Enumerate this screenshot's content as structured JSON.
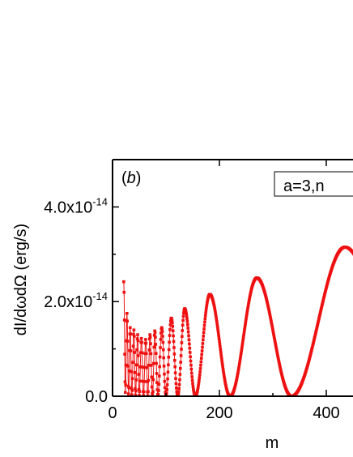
{
  "chart_data": {
    "type": "scatter",
    "panel_label": "b",
    "legend_text": "a=3,n",
    "xlabel": "m",
    "ylabel": "dI/dωdΩ (erg/s)",
    "xlim": [
      0,
      450
    ],
    "ylim": [
      0,
      5e-14
    ],
    "x_ticks": [
      0,
      200,
      400
    ],
    "y_ticks": [
      {
        "value": 0,
        "label": "0.0"
      },
      {
        "value": 2e-14,
        "label": "2.0x10",
        "exp": "-14"
      },
      {
        "value": 4e-14,
        "label": "4.0x10",
        "exp": "-14"
      }
    ],
    "grid": false,
    "series": [
      {
        "color": "#ee1111",
        "marker": "square",
        "connected": true,
        "envelope_peaks": [
          [
            21,
            2.42e-14
          ],
          [
            27,
            1.75e-14
          ],
          [
            33,
            1.45e-14
          ],
          [
            40,
            1.4e-14
          ],
          [
            47,
            1.3e-14
          ],
          [
            54,
            1.22e-14
          ],
          [
            62,
            1.2e-14
          ],
          [
            70,
            1.3e-14
          ],
          [
            79,
            1.38e-14
          ],
          [
            92,
            1.45e-14
          ],
          [
            110,
            1.65e-14
          ],
          [
            135,
            1.85e-14
          ],
          [
            182,
            2.15e-14
          ],
          [
            270,
            2.5e-14
          ],
          [
            435,
            3.15e-14
          ]
        ],
        "envelope_troughs": [
          [
            24,
            8e-16
          ],
          [
            30,
            5e-16
          ],
          [
            36,
            3e-16
          ],
          [
            43,
            2.5e-16
          ],
          [
            50,
            2e-16
          ],
          [
            58,
            1.5e-16
          ],
          [
            66,
            1e-16
          ],
          [
            75,
            5e-17
          ],
          [
            85,
            5e-17
          ],
          [
            100,
            0
          ],
          [
            122,
            0
          ],
          [
            155,
            0
          ],
          [
            220,
            0
          ],
          [
            335,
            0
          ]
        ]
      }
    ]
  }
}
